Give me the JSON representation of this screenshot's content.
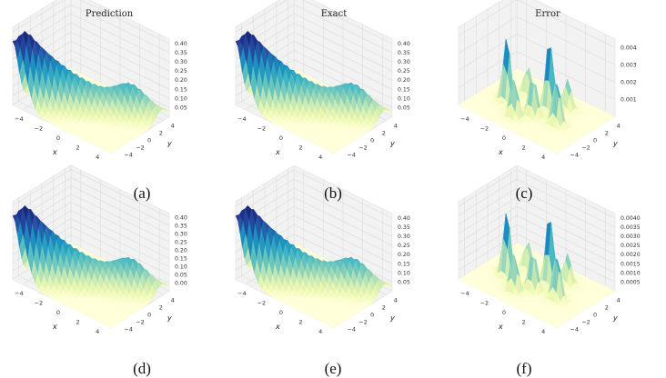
{
  "column_titles": [
    "Prediction",
    "Exact",
    "Error"
  ],
  "captions": [
    "(a)",
    "(b)",
    "(c)",
    "(d)",
    "(e)",
    "(f)"
  ],
  "chart_data": [
    {
      "type": "surface3d",
      "kind": "ridge",
      "xlabel": "x",
      "ylabel": "y",
      "xticks": [
        "−4",
        "−2",
        "0",
        "2",
        "4"
      ],
      "yticks": [
        "−4",
        "−2",
        "0",
        "2",
        "4"
      ],
      "zticks": [
        "0.05",
        "0.10",
        "0.15",
        "0.20",
        "0.25",
        "0.30",
        "0.35",
        "0.40"
      ],
      "zlim": [
        0,
        0.4
      ],
      "xlim": [
        -5,
        5
      ],
      "ylim": [
        -5,
        5
      ]
    },
    {
      "type": "surface3d",
      "kind": "ridge",
      "xlabel": "x",
      "ylabel": "y",
      "xticks": [
        "−4",
        "−2",
        "0",
        "2",
        "4"
      ],
      "yticks": [
        "−4",
        "−2",
        "0",
        "2",
        "4"
      ],
      "zticks": [
        "0.05",
        "0.10",
        "0.15",
        "0.20",
        "0.25",
        "0.30",
        "0.35",
        "0.40"
      ],
      "zlim": [
        0,
        0.4
      ],
      "xlim": [
        -5,
        5
      ],
      "ylim": [
        -5,
        5
      ]
    },
    {
      "type": "surface3d",
      "kind": "error",
      "xlabel": "x",
      "ylabel": "y",
      "xticks": [
        "−4",
        "−2",
        "0",
        "2",
        "4"
      ],
      "yticks": [
        "−4",
        "−2",
        "0",
        "2",
        "4"
      ],
      "zticks": [
        "0.001",
        "0.002",
        "0.003",
        "0.004"
      ],
      "zlim": [
        0,
        0.0045
      ],
      "xlim": [
        -5,
        5
      ],
      "ylim": [
        -5,
        5
      ]
    },
    {
      "type": "surface3d",
      "kind": "ridge",
      "xlabel": "x",
      "ylabel": "y",
      "xticks": [
        "−4",
        "−2",
        "0",
        "2",
        "4"
      ],
      "yticks": [
        "−4",
        "−2",
        "0",
        "2",
        "4"
      ],
      "zticks": [
        "0.00",
        "0.05",
        "0.10",
        "0.15",
        "0.20",
        "0.25",
        "0.30",
        "0.35",
        "0.40"
      ],
      "zlim": [
        0,
        0.4
      ],
      "xlim": [
        -5,
        5
      ],
      "ylim": [
        -5,
        5
      ]
    },
    {
      "type": "surface3d",
      "kind": "ridge",
      "xlabel": "x",
      "ylabel": "y",
      "xticks": [
        "−4",
        "−2",
        "0",
        "2",
        "4"
      ],
      "yticks": [
        "−4",
        "−2",
        "0",
        "2",
        "4"
      ],
      "zticks": [
        "0.05",
        "0.10",
        "0.15",
        "0.20",
        "0.25",
        "0.30",
        "0.35",
        "0.40"
      ],
      "zlim": [
        0,
        0.4
      ],
      "xlim": [
        -5,
        5
      ],
      "ylim": [
        -5,
        5
      ]
    },
    {
      "type": "surface3d",
      "kind": "error",
      "xlabel": "x",
      "ylabel": "y",
      "xticks": [
        "−4",
        "−2",
        "0",
        "2",
        "4"
      ],
      "yticks": [
        "−4",
        "−2",
        "0",
        "2",
        "4"
      ],
      "zticks": [
        "0.0005",
        "0.0010",
        "0.0015",
        "0.0020",
        "0.0025",
        "0.0030",
        "0.0035",
        "0.0040"
      ],
      "zlim": [
        0,
        0.0042
      ],
      "xlim": [
        -5,
        5
      ],
      "ylim": [
        -5,
        5
      ]
    }
  ],
  "colormap": [
    "#ffffd9",
    "#edf8b1",
    "#c7e9b4",
    "#7fcdbb",
    "#41b6c4",
    "#1d91c0",
    "#225ea8",
    "#253494",
    "#081d58"
  ]
}
